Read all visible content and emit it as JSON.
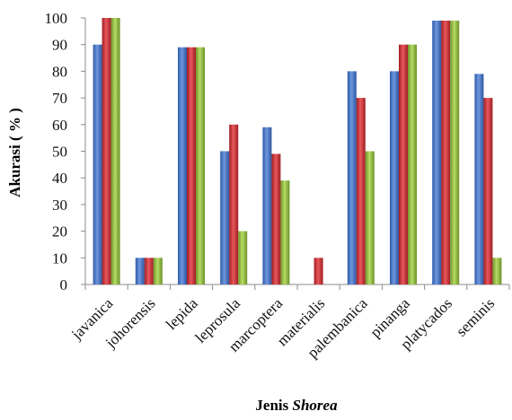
{
  "chart_data": {
    "type": "bar",
    "ylabel": "Akurasi ( % )",
    "xlabel_prefix": "Jenis ",
    "xlabel_italic": "Shorea",
    "ylim": [
      0,
      100
    ],
    "yticks": [
      "0",
      "10",
      "20",
      "30",
      "40",
      "50",
      "60",
      "70",
      "80",
      "90",
      "100"
    ],
    "categories": [
      "javanica",
      "johorensis",
      "lepida",
      "leprosula",
      "marcoptera",
      "materialis",
      "palembanica",
      "pinanga",
      "platycados",
      "seminis"
    ],
    "series": [
      {
        "color": "#3f6fc4",
        "values": [
          90,
          10,
          89,
          50,
          59,
          0,
          80,
          80,
          99,
          79
        ]
      },
      {
        "color": "#c8282e",
        "values": [
          100,
          10,
          89,
          60,
          49,
          10,
          70,
          90,
          99,
          70
        ]
      },
      {
        "color": "#8cba35",
        "values": [
          100,
          10,
          89,
          20,
          39,
          0,
          50,
          90,
          99,
          10
        ]
      }
    ],
    "grid": false,
    "legend": "none"
  }
}
